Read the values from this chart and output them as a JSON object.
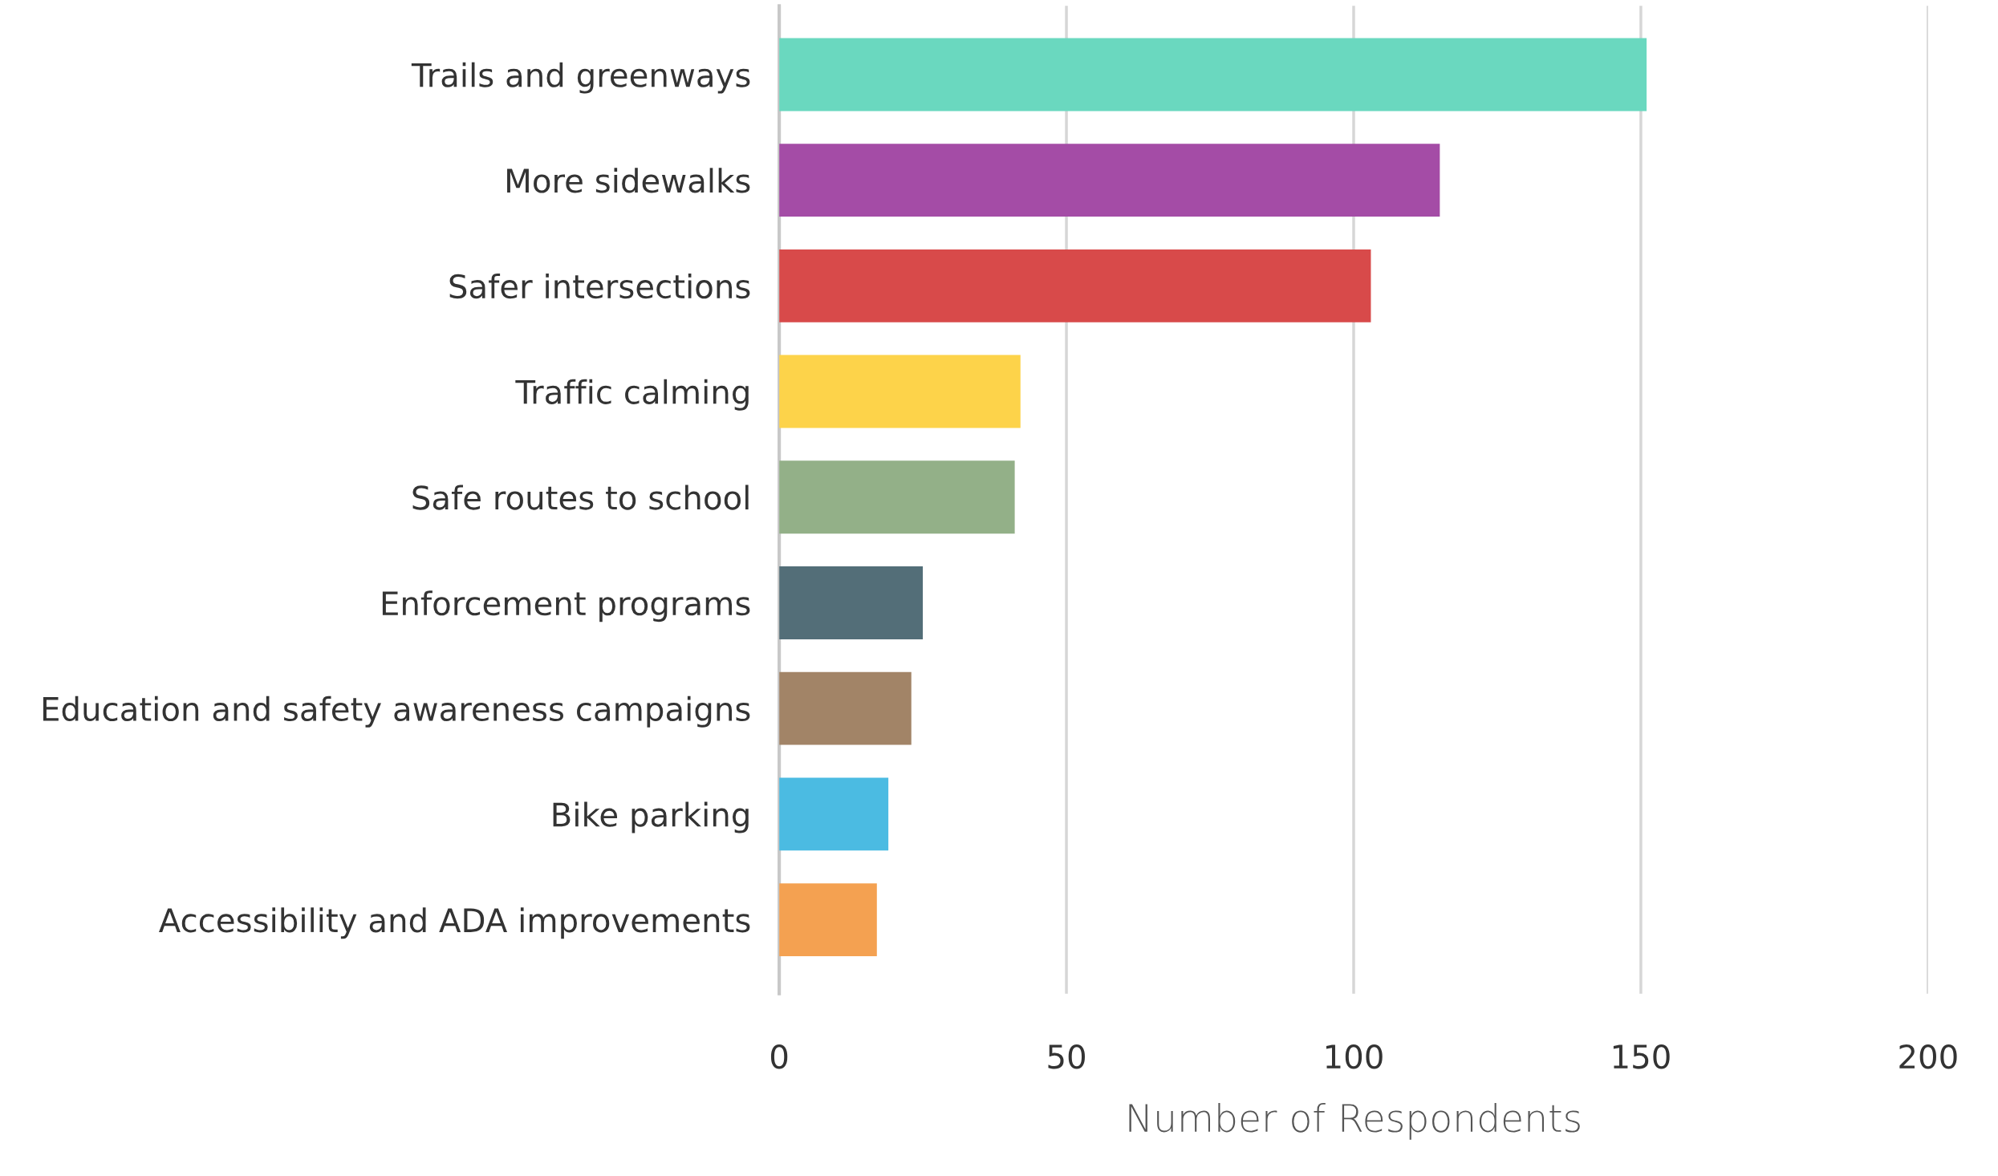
{
  "chart_data": {
    "type": "bar",
    "orientation": "horizontal",
    "xlabel": "Number of Respondents",
    "categories": [
      "Trails and greenways",
      "More sidewalks",
      "Safer intersections",
      "Traffic calming",
      "Safe routes to school",
      "Enforcement programs",
      "Education and safety awareness campaigns",
      "Bike parking",
      "Accessibility and ADA improvements"
    ],
    "values": [
      151,
      115,
      103,
      42,
      41,
      25,
      23,
      19,
      17
    ],
    "colors": [
      "#6ad8bf",
      "#a44ca6",
      "#d84a4a",
      "#fdd34a",
      "#93b088",
      "#536e78",
      "#a28467",
      "#4bbbe2",
      "#f4a151"
    ],
    "xlim": [
      0,
      200
    ],
    "xticks": [
      0,
      50,
      100,
      150,
      200
    ],
    "grid": "x"
  }
}
